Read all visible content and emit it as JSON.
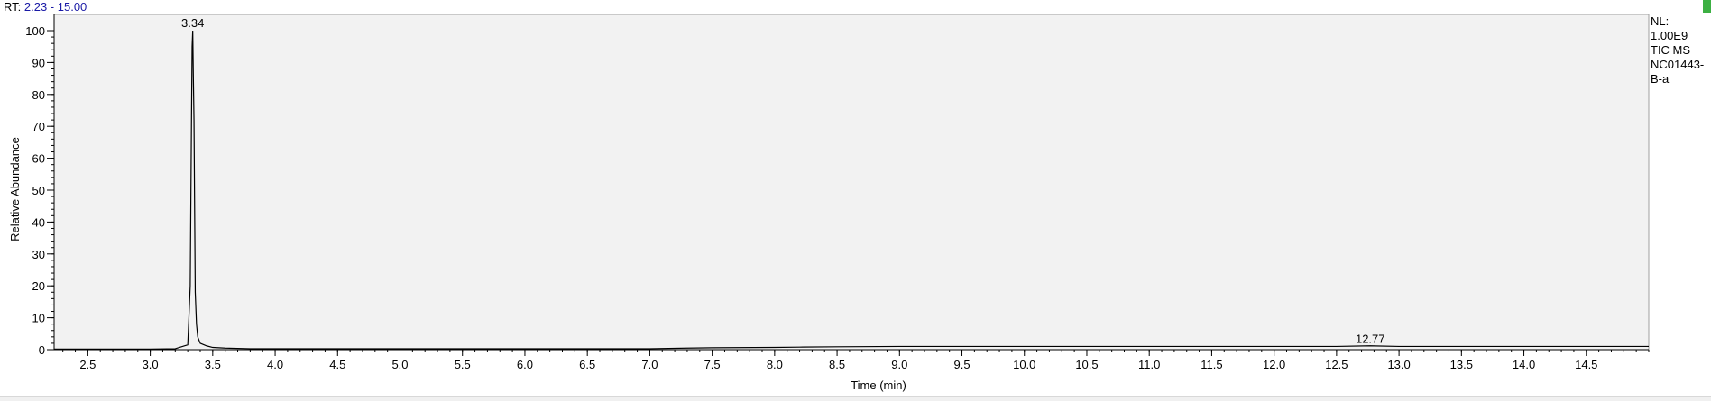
{
  "header": {
    "rt_label": "RT:",
    "rt_range": "2.23 - 15.00",
    "accent_color": "#1a1aa6",
    "marker_color": "#3cb043"
  },
  "annotation": {
    "line1": "NL:",
    "line2": "1.00E9",
    "line3": "TIC  MS",
    "line4": "NC01443-",
    "line5": "B-a"
  },
  "chart_data": {
    "type": "line",
    "xlabel": "Time (min)",
    "ylabel": "Relative Abundance",
    "xlim": [
      2.23,
      15.0
    ],
    "ylim": [
      0,
      100
    ],
    "x_ticks": [
      "2.5",
      "3.0",
      "3.5",
      "4.0",
      "4.5",
      "5.0",
      "5.5",
      "6.0",
      "6.5",
      "7.0",
      "7.5",
      "8.0",
      "8.5",
      "9.0",
      "9.5",
      "10.0",
      "10.5",
      "11.0",
      "11.5",
      "12.0",
      "12.5",
      "13.0",
      "13.5",
      "14.0",
      "14.5"
    ],
    "y_ticks": [
      "0",
      "10",
      "20",
      "30",
      "40",
      "50",
      "60",
      "70",
      "80",
      "90",
      "100"
    ],
    "grid": false,
    "plot_background": "#f2f2f2",
    "line_color": "#000000",
    "peak_labels": [
      {
        "x": 3.34,
        "y": 100,
        "label": "3.34"
      },
      {
        "x": 12.77,
        "y": 1.0,
        "label": "12.77"
      }
    ],
    "series": [
      {
        "x": [
          2.23,
          2.5,
          3.0,
          3.2,
          3.3,
          3.32,
          3.33,
          3.335,
          3.34,
          3.345,
          3.35,
          3.36,
          3.37,
          3.38,
          3.4,
          3.45,
          3.5,
          3.6,
          3.8,
          4.0,
          5.0,
          6.0,
          7.0,
          7.3,
          7.5,
          8.0,
          8.2,
          8.5,
          9.0,
          10.0,
          11.0,
          12.0,
          12.5,
          12.77,
          13.0,
          14.0,
          15.0
        ],
        "y": [
          0.2,
          0.2,
          0.2,
          0.3,
          1.5,
          20,
          72,
          95,
          100,
          85,
          72,
          18,
          8,
          4,
          2,
          1.2,
          0.7,
          0.5,
          0.3,
          0.3,
          0.3,
          0.3,
          0.3,
          0.5,
          0.6,
          0.7,
          0.8,
          0.9,
          1.0,
          1.0,
          1.0,
          1.0,
          1.0,
          1.2,
          1.0,
          1.0,
          1.0
        ]
      }
    ]
  }
}
